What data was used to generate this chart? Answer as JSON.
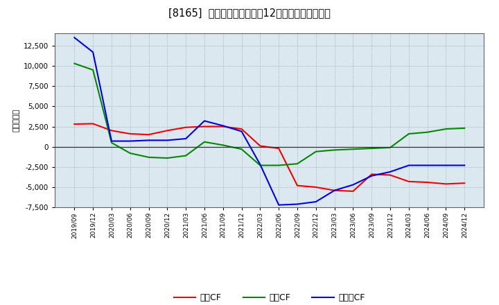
{
  "title": "[8165]  キャッシュフローの12か月移動合計の推移",
  "ylabel": "（百万円）",
  "background_color": "#ffffff",
  "plot_background_color": "#dce8f0",
  "ylim": [
    -7500,
    14000
  ],
  "yticks": [
    -7500,
    -5000,
    -2500,
    0,
    2500,
    5000,
    7500,
    10000,
    12500
  ],
  "x_labels": [
    "2019/09",
    "2019/12",
    "2020/03",
    "2020/06",
    "2020/09",
    "2020/12",
    "2021/03",
    "2021/06",
    "2021/09",
    "2021/12",
    "2022/03",
    "2022/06",
    "2022/09",
    "2022/12",
    "2023/03",
    "2023/06",
    "2023/09",
    "2023/12",
    "2024/03",
    "2024/06",
    "2024/09",
    "2024/12"
  ],
  "eigyo_cf": [
    2800,
    2850,
    2000,
    1600,
    1500,
    2000,
    2400,
    2500,
    2500,
    2200,
    100,
    -200,
    -4800,
    -5000,
    -5400,
    -5500,
    -3400,
    -3500,
    -4300,
    -4400,
    -4600,
    -4500
  ],
  "toshi_cf": [
    10300,
    9500,
    500,
    -800,
    -1300,
    -1400,
    -1100,
    600,
    200,
    -300,
    -2300,
    -2300,
    -2100,
    -600,
    -400,
    -300,
    -200,
    -100,
    1600,
    1800,
    2200,
    2300
  ],
  "free_cf": [
    13500,
    11700,
    700,
    700,
    800,
    800,
    1000,
    3200,
    2600,
    1900,
    -2200,
    -7200,
    -7100,
    -6800,
    -5400,
    -4700,
    -3600,
    -3100,
    -2300,
    -2300,
    -2300,
    -2300
  ],
  "eigyo_color": "#ee0000",
  "toshi_color": "#008800",
  "free_color": "#0000dd",
  "eigyo_label": "営業CF",
  "toshi_label": "投資CF",
  "free_label": "フリーCF",
  "line_width": 1.5
}
